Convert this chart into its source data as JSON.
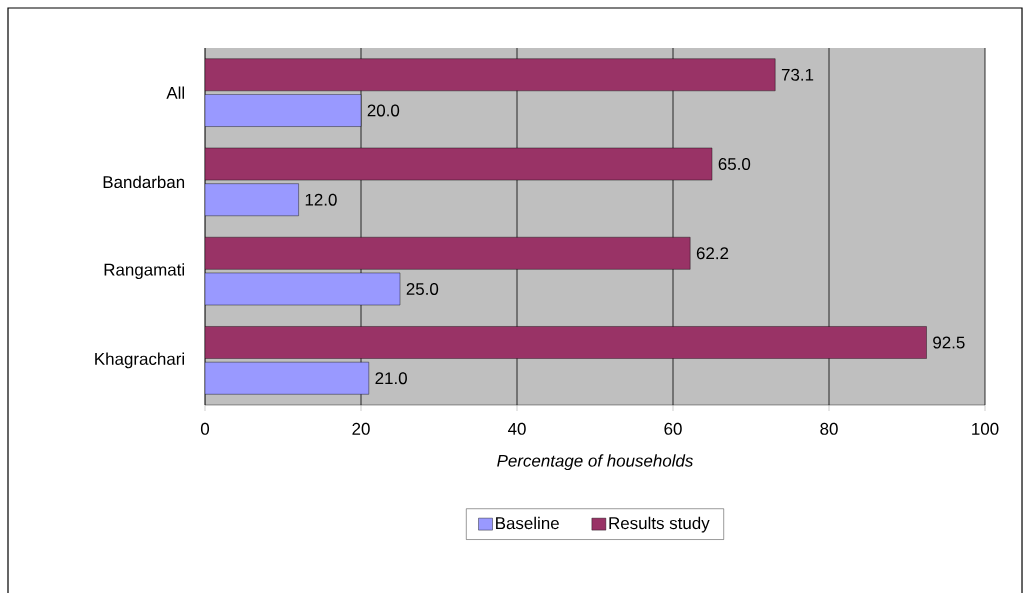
{
  "chart_data": {
    "type": "bar",
    "orientation": "horizontal",
    "xlabel": "Percentage of households",
    "categories": [
      "All",
      "Bandarban",
      "Rangamati",
      "Khagrachari"
    ],
    "series": [
      {
        "name": "Baseline",
        "color": "#9999ff",
        "values": [
          20.0,
          12.0,
          25.0,
          21.0
        ],
        "value_labels": [
          "20.0",
          "12.0",
          "25.0",
          "21.0"
        ]
      },
      {
        "name": "Results study",
        "color": "#993366",
        "values": [
          73.1,
          65.0,
          62.2,
          92.5
        ],
        "value_labels": [
          "73.1",
          "65.0",
          "62.2",
          "92.5"
        ]
      }
    ],
    "xlim": [
      0,
      100
    ],
    "xticks": [
      0,
      20,
      40,
      60,
      80,
      100
    ],
    "grid": "x",
    "legend": "bottom"
  }
}
